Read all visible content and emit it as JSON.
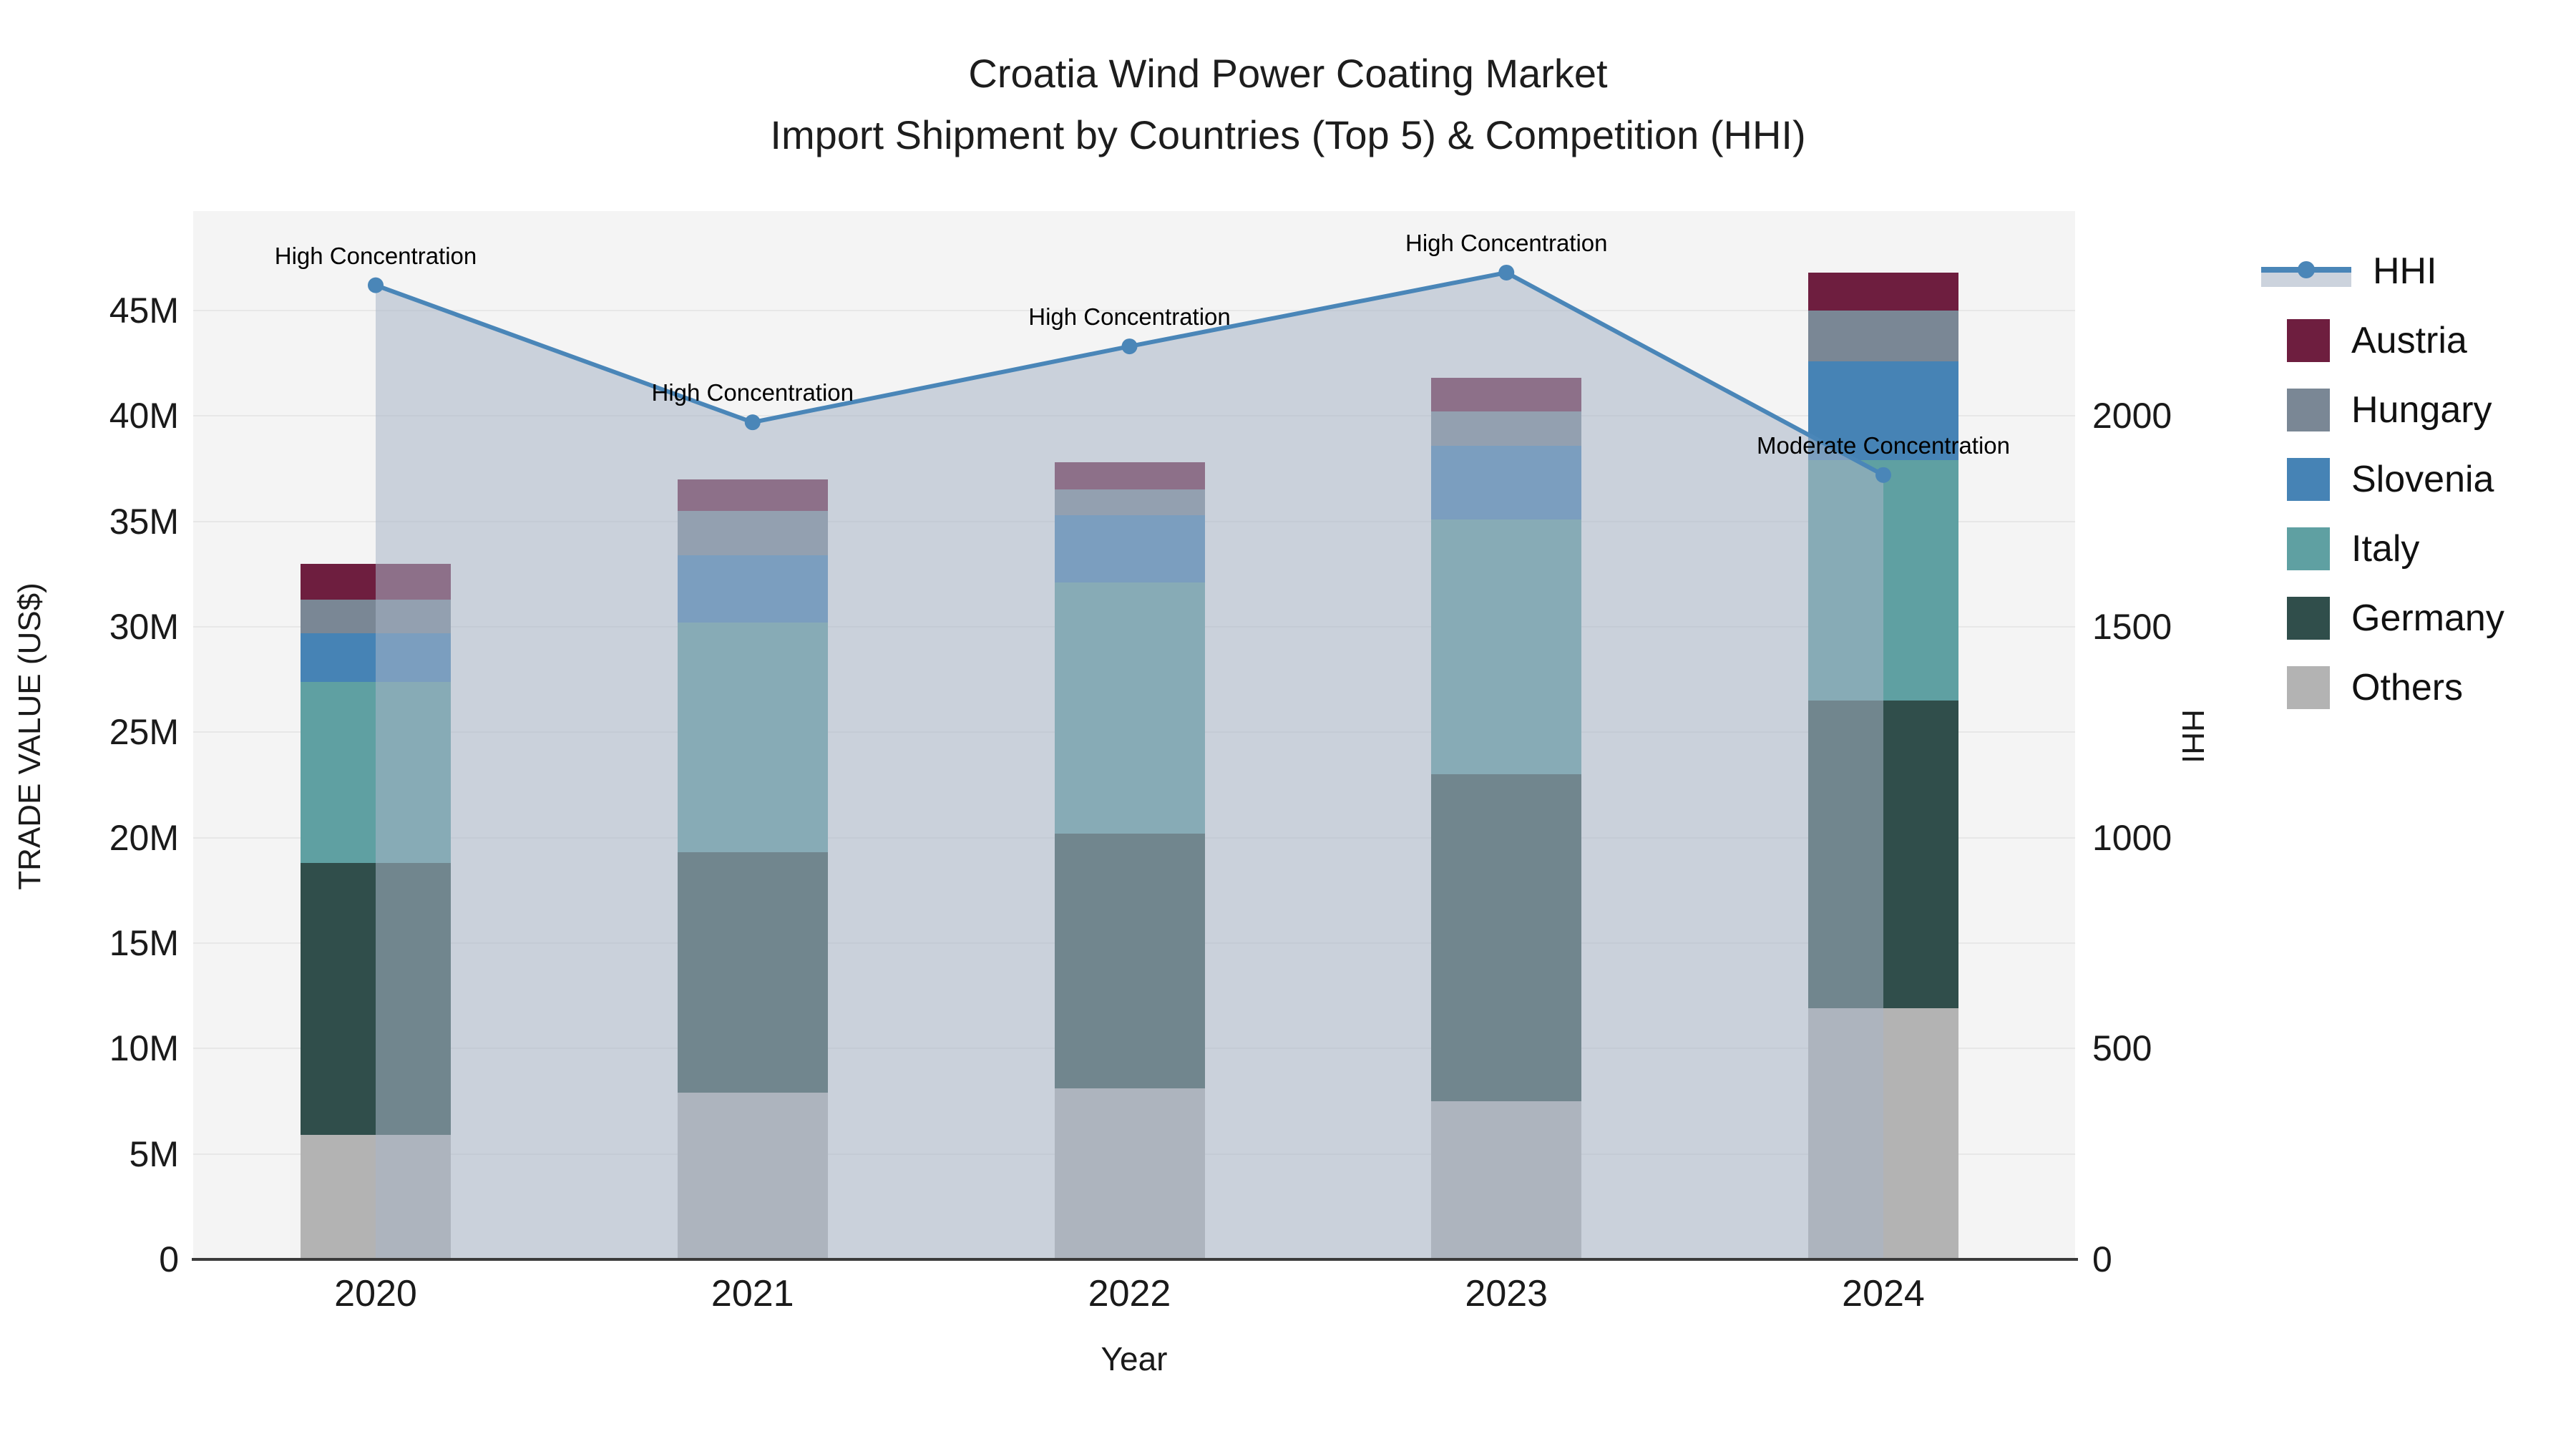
{
  "title": {
    "line1": "Croatia Wind Power Coating Market",
    "line2": "Import Shipment by Countries (Top 5) & Competition (HHI)"
  },
  "axes": {
    "x": {
      "title": "Year",
      "ticks": [
        "2020",
        "2021",
        "2022",
        "2023",
        "2024"
      ]
    },
    "y_left": {
      "title": "TRADE VALUE (US$)",
      "ticks": [
        "0",
        "5M",
        "10M",
        "15M",
        "20M",
        "25M",
        "30M",
        "35M",
        "40M",
        "45M"
      ],
      "tick_values_M": [
        0,
        5,
        10,
        15,
        20,
        25,
        30,
        35,
        40,
        45
      ]
    },
    "y_right": {
      "title": "HHI",
      "ticks": [
        "0",
        "500",
        "1000",
        "1500",
        "2000"
      ],
      "tick_values": [
        0,
        500,
        1000,
        1500,
        2000
      ]
    }
  },
  "legend": {
    "items": [
      {
        "label": "HHI",
        "type": "line",
        "color": "#4a86b8",
        "band_color": "#ccd3dd"
      },
      {
        "label": "Austria",
        "type": "swatch",
        "color": "#6e1e3f"
      },
      {
        "label": "Hungary",
        "type": "swatch",
        "color": "#7a8795"
      },
      {
        "label": "Slovenia",
        "type": "swatch",
        "color": "#4683b5"
      },
      {
        "label": "Italy",
        "type": "swatch",
        "color": "#5fa0a2"
      },
      {
        "label": "Germany",
        "type": "swatch",
        "color": "#304e4b"
      },
      {
        "label": "Others",
        "type": "swatch",
        "color": "#b3b3b3"
      }
    ]
  },
  "chart_data": {
    "type": "bar+line",
    "title": "Croatia Wind Power Coating Market — Import Shipment by Countries (Top 5) & Competition (HHI)",
    "xlabel": "Year",
    "ylabel_left": "TRADE VALUE (US$)",
    "ylabel_right": "HHI",
    "categories": [
      "2020",
      "2021",
      "2022",
      "2023",
      "2024"
    ],
    "bar_unit": "million US$",
    "stack_order_bottom_to_top": [
      "Others",
      "Germany",
      "Italy",
      "Slovenia",
      "Hungary",
      "Austria"
    ],
    "series": [
      {
        "name": "Others",
        "color": "#b3b3b3",
        "values": [
          5.9,
          7.9,
          8.1,
          7.5,
          11.9
        ]
      },
      {
        "name": "Germany",
        "color": "#304e4b",
        "values": [
          12.9,
          11.4,
          12.1,
          15.5,
          14.6
        ]
      },
      {
        "name": "Italy",
        "color": "#5fa0a2",
        "values": [
          8.6,
          10.9,
          11.9,
          12.1,
          11.4
        ]
      },
      {
        "name": "Slovenia",
        "color": "#4683b5",
        "values": [
          2.3,
          3.2,
          3.2,
          3.5,
          4.7
        ]
      },
      {
        "name": "Hungary",
        "color": "#7a8795",
        "values": [
          1.6,
          2.1,
          1.2,
          1.6,
          2.4
        ]
      },
      {
        "name": "Austria",
        "color": "#6e1e3f",
        "values": [
          1.7,
          1.5,
          1.3,
          1.6,
          1.8
        ]
      }
    ],
    "bar_totals_M": [
      33.0,
      37.0,
      37.8,
      41.8,
      46.8
    ],
    "line_series": {
      "name": "HHI",
      "color": "#4a86b8",
      "area_fill": "rgba(167,181,199,0.55)",
      "values": [
        2310,
        1985,
        2165,
        2340,
        1860
      ]
    },
    "annotations": [
      {
        "category": "2020",
        "text": "High Concentration"
      },
      {
        "category": "2021",
        "text": "High Concentration"
      },
      {
        "category": "2022",
        "text": "High Concentration"
      },
      {
        "category": "2023",
        "text": "High Concentration"
      },
      {
        "category": "2024",
        "text": "Moderate Concentration"
      }
    ],
    "ylim_left_M": [
      0,
      49.7
    ],
    "ylim_right": [
      0,
      2486
    ],
    "grid": true,
    "legend_position": "right"
  }
}
